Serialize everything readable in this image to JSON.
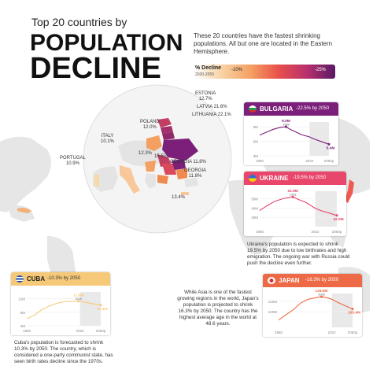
{
  "header": {
    "kicker": "Top 20 countries by",
    "title_line1": "POPULATION",
    "title_line2": "DECLINE",
    "intro": "These 20 countries have the fastest shrinking populations. All but one are located in the Eastern Hemisphere."
  },
  "legend": {
    "label": "% Decline",
    "sublabel": "2020-2050",
    "min_label": "-10%",
    "max_label": "-25%"
  },
  "map_labels": {
    "estonia": "ESTONIA\n12.7%",
    "latvia": "LATVIA 21.6%",
    "lithuania": "LITHUANIA 22.1%",
    "poland": "POLAND\n12.0%",
    "italy": "ITALY\n10.1%",
    "portugal": "PORTUGAL\n10.9%",
    "georgia": "GEORGIA 11.8%",
    "georgia2": "GEORGIA\n11.8%",
    "greece": "12.3%",
    "country_15": "15.5%",
    "cyprus": "13.4%"
  },
  "notes": {
    "ukraine": "Ukraine's population is expected to shrink 19.5% by 2050 due to low birthrates and high emigration. The ongoing war with Russia could push the decline even further.",
    "japan": "While Asia is one of the fastest growing regions in the world, Japan's population is projected to shrink 16.3% by 2050. The country has the highest average age in the world at 48.6 years.",
    "cuba": "Cuba's population is forecasted to shrink 10.3% by 2050. The country, which is considered a one-party communist state, has seen birth rates decline since the 1970s."
  },
  "colors": {
    "bulgaria": "#7b1f7a",
    "ukraine": "#e8466a",
    "japan": "#ee6a46",
    "cuba": "#f6c979",
    "map_land": "#e9e9e9",
    "globe_bg": "#f2f2f2"
  },
  "chart_data": [
    {
      "type": "line",
      "name": "BULGARIA",
      "change": "-22.5% by 2050",
      "x": [
        1950,
        1960,
        1970,
        1980,
        1988,
        1995,
        2000,
        2010,
        2022,
        2030,
        2040,
        2050
      ],
      "values": [
        7.3,
        7.9,
        8.5,
        8.9,
        9.0,
        8.4,
        8.1,
        7.4,
        6.9,
        6.4,
        5.9,
        5.4
      ],
      "peak_label": "9.0M",
      "peak_year": "1988",
      "end_label": "5.4M",
      "y_ticks": [
        "3M",
        "6M",
        "9M"
      ],
      "ylim": [
        3,
        10
      ],
      "x_ticks": [
        "1950",
        "2022",
        "2050p"
      ],
      "forecast_start": 2022
    },
    {
      "type": "line",
      "name": "UKRAINE",
      "change": "-19.5% by 2050",
      "x": [
        1950,
        1960,
        1970,
        1980,
        1990,
        1993,
        2000,
        2010,
        2022,
        2030,
        2040,
        2050
      ],
      "values": [
        37.3,
        42.7,
        47.3,
        50.0,
        51.6,
        51.9,
        49.2,
        45.9,
        39.7,
        37.0,
        34.6,
        32.0
      ],
      "peak_label": "51.9M",
      "peak_year": "1993",
      "end_label": "32.0M",
      "y_ticks": [
        "30M",
        "40M",
        "50M"
      ],
      "ylim": [
        20,
        58
      ],
      "x_ticks": [
        "1950",
        "2022",
        "2050p"
      ],
      "forecast_start": 2022
    },
    {
      "type": "line",
      "name": "JAPAN",
      "change": "-16.3% by 2050",
      "x": [
        1950,
        1960,
        1970,
        1980,
        1990,
        2000,
        2008,
        2015,
        2022,
        2030,
        2040,
        2050
      ],
      "values": [
        84,
        94,
        104,
        117,
        124,
        127,
        128.8,
        127.1,
        124.0,
        118.0,
        111.5,
        105.4
      ],
      "peak_label": "128.8M",
      "peak_year": "2008",
      "end_label": "105.4M",
      "y_ticks": [
        "100M",
        "120M"
      ],
      "ylim": [
        70,
        135
      ],
      "x_ticks": [
        "1950",
        "2022",
        "2050p"
      ],
      "forecast_start": 2022
    },
    {
      "type": "line",
      "name": "CUBA",
      "change": "-10.3% by 2050",
      "x": [
        1950,
        1960,
        1970,
        1980,
        1990,
        2000,
        2010,
        2020,
        2022,
        2030,
        2040,
        2050
      ],
      "values": [
        6.1,
        7.1,
        8.7,
        9.8,
        10.6,
        11.1,
        11.2,
        11.3,
        11.2,
        10.9,
        10.5,
        10.1
      ],
      "peak_label": "11.3M",
      "peak_year": "2020",
      "end_label": "10.1M",
      "y_ticks": [
        "4M",
        "8M",
        "12M"
      ],
      "ylim": [
        4,
        14
      ],
      "x_ticks": [
        "1950",
        "2022",
        "2050p"
      ],
      "forecast_start": 2022
    }
  ]
}
